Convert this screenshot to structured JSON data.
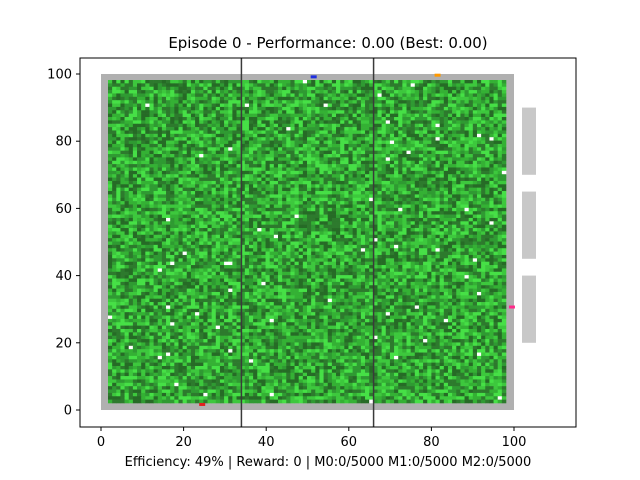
{
  "title": "Episode 0 - Performance: 0.00 (Best: 0.00)",
  "footer": "Efficiency: 49% | Reward: 0 | M0:0/5000 M1:0/5000 M2:0/5000",
  "axes": {
    "x_ticks": [
      "0",
      "20",
      "40",
      "60",
      "80",
      "100"
    ],
    "y_ticks": [
      "0",
      "20",
      "40",
      "60",
      "80",
      "100"
    ]
  },
  "field": {
    "grid_cells": 96,
    "field_range": [
      0,
      100
    ],
    "dividers_x": [
      34,
      66
    ],
    "colors": {
      "border": "#b0b0b0",
      "grass": [
        "#2f9a32",
        "#3dc83d",
        "#2d7a2d",
        "#34b134",
        "#46e046",
        "#266b26"
      ],
      "divider": "#3a3a3a",
      "side_panel": "#c8c8c8"
    },
    "side_panels_y": [
      [
        70,
        90
      ],
      [
        45,
        65
      ],
      [
        20,
        40
      ]
    ],
    "markers": [
      {
        "name": "blue-agent-marker",
        "x": 51.5,
        "y": 99,
        "color": "#1f2fe0"
      },
      {
        "name": "orange-agent-marker",
        "x": 81.5,
        "y": 99.5,
        "color": "#ff9900"
      },
      {
        "name": "red-agent-marker",
        "x": 24.5,
        "y": 1.5,
        "color": "#e02020"
      },
      {
        "name": "magenta-agent-marker",
        "x": 99.5,
        "y": 30.5,
        "color": "#ff2a8a"
      }
    ]
  }
}
